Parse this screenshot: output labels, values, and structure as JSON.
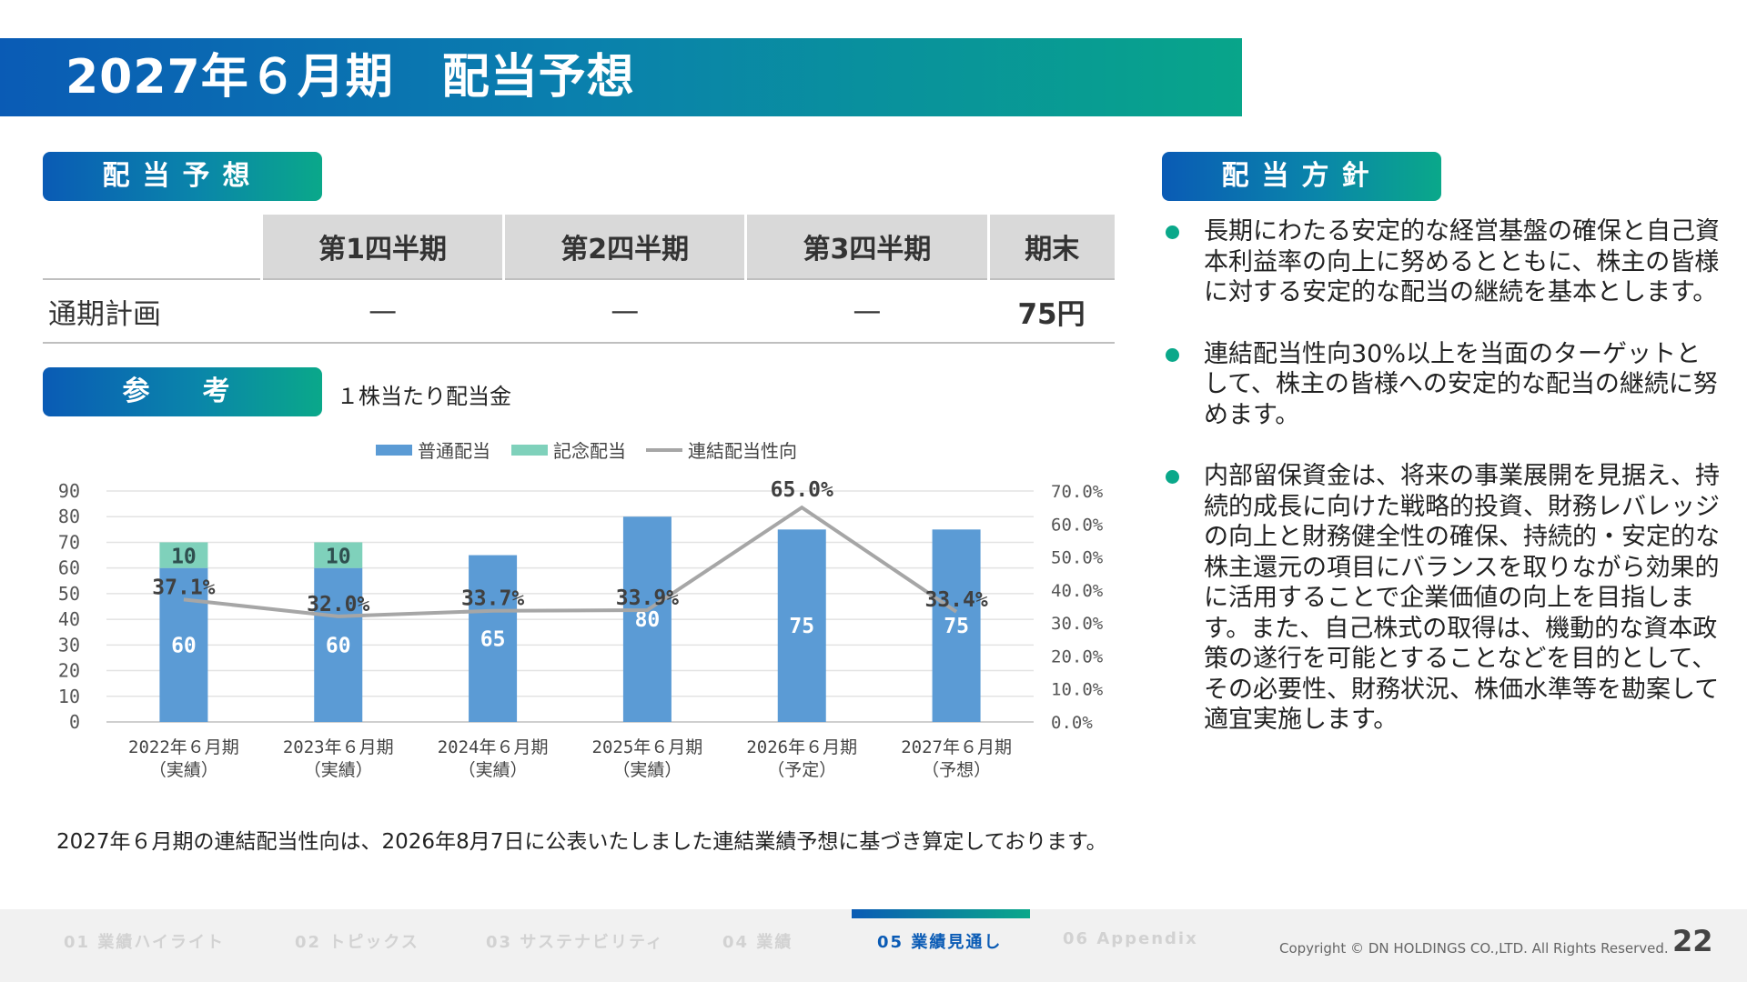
{
  "title": "2027年６月期　配当予想",
  "sections": {
    "dividend_forecast": "配当予想",
    "reference": "参　考",
    "policy": "配当方針"
  },
  "dividend_table": {
    "headers": [
      "第1四半期",
      "第2四半期",
      "第3四半期",
      "期末"
    ],
    "row_label": "通期計画",
    "values": [
      "—",
      "—",
      "—",
      "75円"
    ]
  },
  "reference_subtitle": "１株当たり配当金",
  "chart_data": {
    "type": "bar",
    "categories": [
      [
        "2022年６月期",
        "（実績）"
      ],
      [
        "2023年６月期",
        "（実績）"
      ],
      [
        "2024年６月期",
        "（実績）"
      ],
      [
        "2025年６月期",
        "（実績）"
      ],
      [
        "2026年６月期",
        "（予定）"
      ],
      [
        "2027年６月期",
        "（予想）"
      ]
    ],
    "series": [
      {
        "name": "普通配当",
        "type": "bar",
        "stack": "dividend",
        "color": "#5b9bd5",
        "values": [
          60,
          60,
          65,
          80,
          75,
          75
        ]
      },
      {
        "name": "記念配当",
        "type": "bar",
        "stack": "dividend",
        "color": "#7fd1bb",
        "values": [
          10,
          10,
          0,
          0,
          0,
          0
        ]
      },
      {
        "name": "連結配当性向",
        "type": "line",
        "axis": "right",
        "color": "#a6a6a6",
        "values": [
          37.1,
          32.0,
          33.7,
          33.9,
          65.0,
          33.4
        ]
      }
    ],
    "ylim_left": [
      0,
      90
    ],
    "yticks_left": [
      "0",
      "10",
      "20",
      "30",
      "40",
      "50",
      "60",
      "70",
      "80",
      "90"
    ],
    "ylim_right": [
      0,
      70
    ],
    "yticks_right": [
      "0.0%",
      "10.0%",
      "20.0%",
      "30.0%",
      "40.0%",
      "50.0%",
      "60.0%",
      "70.0%"
    ],
    "grid": true,
    "legend_position": "top"
  },
  "note": "2027年６月期の連結配当性向は、2026年8月7日に公表いたしました連結業績予想に基づき算定しております。",
  "policy_items": [
    "長期にわたる安定的な経営基盤の確保と自己資本利益率の向上に努めるとともに、株主の皆様に対する安定的な配当の継続を基本とします。",
    "連結配当性向30%以上を当面のターゲットとして、株主の皆様への安定的な配当の継続に努めます。",
    "内部留保資金は、将来の事業展開を見据え、持続的成長に向けた戦略的投資、財務レバレッジの向上と財務健全性の確保、持続的・安定的な株主還元の項目にバランスを取りながら効果的に活用することで企業価値の向上を目指します。また、自己株式の取得は、機動的な資本政策の遂行を可能とすることなどを目的として、その必要性、財務状況、株価水準等を勘案して適宜実施します。"
  ],
  "footer": {
    "nav": [
      "01 業績ハイライト",
      "02 トピックス",
      "03 サステナビリティ",
      "04 業績",
      "05 業績見通し",
      "06 Appendix"
    ],
    "active_index": 4,
    "copyright": "Copyright © DN HOLDINGS CO.,LTD. All Rights Reserved.",
    "page": "22"
  },
  "colors": {
    "brand_blue": "#0a5bb5",
    "brand_green": "#0aa88a",
    "bar": "#5b9bd5",
    "bar_commemorative": "#7fd1bb",
    "payout_line": "#a6a6a6"
  }
}
